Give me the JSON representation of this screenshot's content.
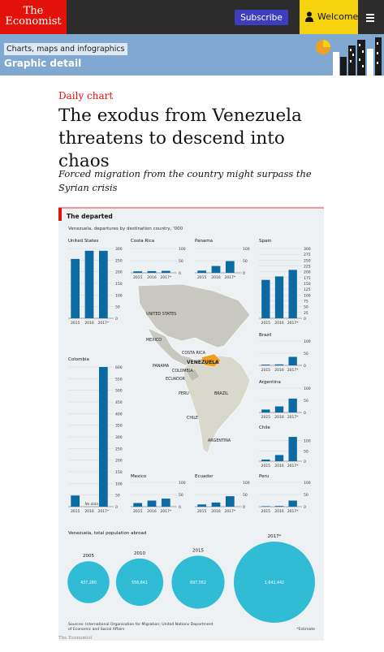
{
  "header": {
    "logo_line1": "The",
    "logo_line2": "Economist",
    "subscribe_label": "Subscribe",
    "welcome_label": "Welcome",
    "colors": {
      "logo_bg": "#e3120b",
      "bar_bg": "#2c2c2c",
      "subscribe_bg": "#3d3dbf",
      "welcome_bg": "#f6d20e"
    }
  },
  "section": {
    "crumb": "Charts, maps and infographics",
    "title": "Graphic detail",
    "bg_color": "#80a8d0"
  },
  "article": {
    "kicker": "Daily chart",
    "headline": "The exodus from Venezuela threatens to descend into chaos",
    "standfirst": "Forced migration from the country might surpass the Syrian crisis",
    "image_credit": "The Economist"
  },
  "chart_data": {
    "type": "bar",
    "title": "The departed",
    "subtitle": "Venezuela, departures by destination country, '000",
    "bar_color": "#0b6aa2",
    "map_labels": [
      "UNITED STATES",
      "MEXICO",
      "COSTA RICA",
      "PANAMA",
      "COLOMBIA",
      "VENEZUELA",
      "ECUADOR",
      "PERU",
      "BRAZIL",
      "CHILE",
      "ARGENTINA"
    ],
    "categories": [
      "2015",
      "2016",
      "2017*"
    ],
    "panels": [
      {
        "name": "United States",
        "values": [
          255,
          290,
          290
        ],
        "ymax": 300,
        "ticks": [
          0,
          50,
          100,
          150,
          200,
          250,
          300
        ]
      },
      {
        "name": "Costa Rica",
        "values": [
          6,
          7,
          8
        ],
        "ymax": 100,
        "ticks": [
          0,
          50,
          100
        ]
      },
      {
        "name": "Panama",
        "values": [
          9,
          28,
          48
        ],
        "ymax": 100,
        "ticks": [
          0,
          50,
          100
        ]
      },
      {
        "name": "Spain",
        "values": [
          165,
          180,
          208
        ],
        "ymax": 300,
        "ticks": [
          0,
          25,
          50,
          75,
          100,
          125,
          150,
          175,
          200,
          225,
          250,
          275,
          300
        ]
      },
      {
        "name": "Brazil",
        "values": [
          3,
          4,
          35
        ],
        "ymax": 100,
        "ticks": [
          0,
          50,
          100
        ]
      },
      {
        "name": "Argentina",
        "values": [
          12,
          25,
          57
        ],
        "ymax": 100,
        "ticks": [
          0,
          50,
          100
        ]
      },
      {
        "name": "Chile",
        "values": [
          8,
          30,
          118
        ],
        "ymax": 150,
        "ticks": [
          0,
          50,
          100
        ]
      },
      {
        "name": "Peru",
        "values": [
          2,
          3,
          25
        ],
        "ymax": 100,
        "ticks": [
          0,
          50,
          100
        ]
      },
      {
        "name": "Mexico",
        "values": [
          15,
          25,
          33
        ],
        "ymax": 100,
        "ticks": [
          0,
          50,
          100
        ]
      },
      {
        "name": "Ecuador",
        "values": [
          9,
          17,
          43
        ],
        "ymax": 100,
        "ticks": [
          0,
          50,
          100
        ]
      },
      {
        "name": "Colombia",
        "values": [
          48,
          null,
          600
        ],
        "ymax": 600,
        "ticks": [
          0,
          50,
          100,
          150,
          200,
          250,
          300,
          350,
          400,
          450,
          500,
          550,
          600
        ],
        "note": "No data"
      }
    ],
    "population": {
      "title": "Venezuela, total population abroad",
      "bubble_color": "#2fbcd4",
      "items": [
        {
          "year": "2005",
          "value": 437280,
          "label": "437,280"
        },
        {
          "year": "2010",
          "value": 556641,
          "label": "556,641"
        },
        {
          "year": "2015",
          "value": 697562,
          "label": "697,562"
        },
        {
          "year": "2017*",
          "value": 1642442,
          "label": "1,642,442"
        }
      ]
    },
    "source": "Sources: International Organisation for Migration; United Nations Department of Economic and Social Affairs",
    "footnote": "*Estimate"
  }
}
